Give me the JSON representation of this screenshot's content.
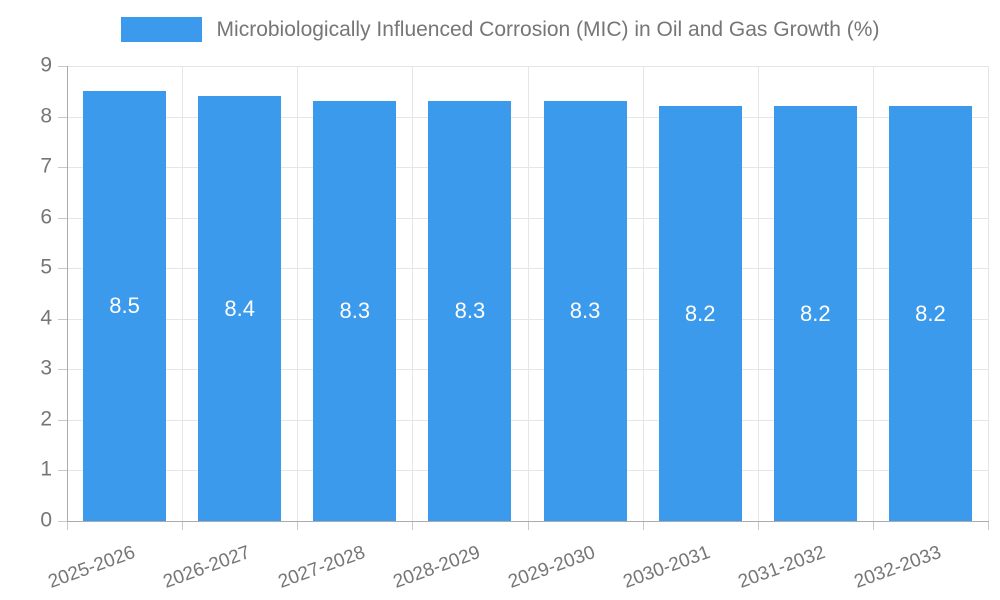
{
  "colors": {
    "background": "#FFFFFF",
    "bar": "#3B9AEC",
    "grid": "#E6E6E6",
    "axis": "#ABABAB",
    "tick": "#C9C9C9",
    "text": "#767676",
    "bar_label": "#FFFFFF"
  },
  "chart_data": {
    "type": "bar",
    "title": "Microbiologically Influenced Corrosion (MIC) in Oil and Gas Growth (%)",
    "categories": [
      "2025-2026",
      "2026-2027",
      "2027-2028",
      "2028-2029",
      "2029-2030",
      "2030-2031",
      "2031-2032",
      "2032-2033"
    ],
    "values": [
      8.5,
      8.4,
      8.3,
      8.3,
      8.3,
      8.2,
      8.2,
      8.2
    ],
    "value_labels": [
      "8.5",
      "8.4",
      "8.3",
      "8.3",
      "8.3",
      "8.2",
      "8.2",
      "8.2"
    ],
    "xlabel": "",
    "ylabel": "",
    "ylim": [
      0,
      9
    ],
    "ytick_step": 1,
    "ytick_labels": [
      "0",
      "1",
      "2",
      "3",
      "4",
      "5",
      "6",
      "7",
      "8",
      "9"
    ],
    "grid": true,
    "legend_position": "top",
    "value_labels_inside_bars": true,
    "x_label_rotation_deg": -20
  }
}
